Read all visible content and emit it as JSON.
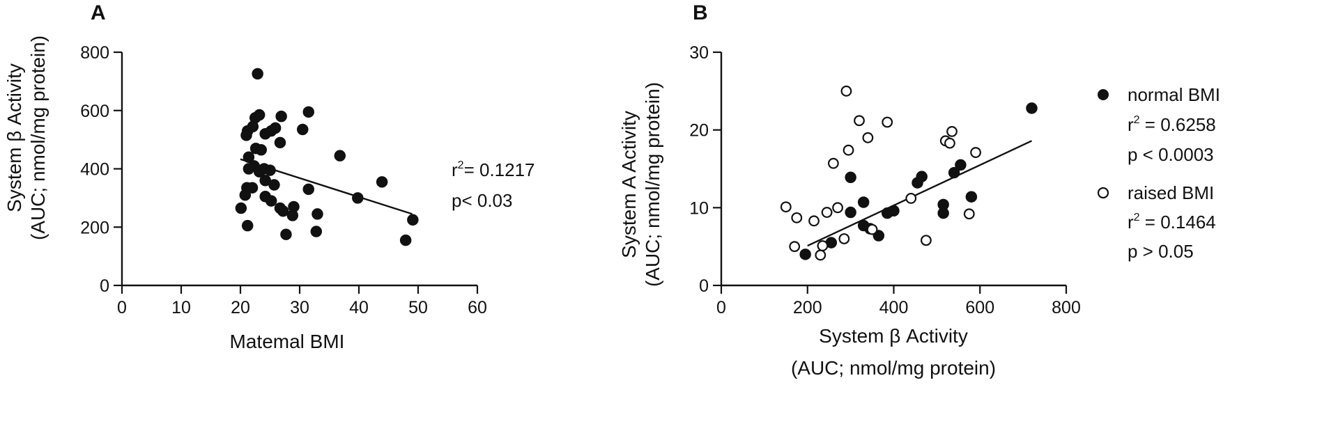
{
  "chart_data": [
    {
      "panel": "A",
      "type": "scatter",
      "xlabel": "Matemal BMI",
      "ylabel_lines": [
        "System β Activity",
        "(AUC; nmol/mg protein)"
      ],
      "xlim": [
        0,
        60
      ],
      "ylim": [
        0,
        800
      ],
      "xticks": [
        0,
        10,
        20,
        30,
        40,
        50,
        60
      ],
      "yticks": [
        0,
        200,
        400,
        600,
        800
      ],
      "grid": false,
      "series": [
        {
          "marker": "filled",
          "points": [
            [
              22.9,
              726
            ],
            [
              21.2,
              530
            ],
            [
              22.1,
              545
            ],
            [
              22.5,
              575
            ],
            [
              23.2,
              585
            ],
            [
              21.0,
              515
            ],
            [
              22.6,
              470
            ],
            [
              23.5,
              465
            ],
            [
              21.4,
              440
            ],
            [
              21.4,
              400
            ],
            [
              22.3,
              410
            ],
            [
              23.2,
              390
            ],
            [
              24.0,
              400
            ],
            [
              21.1,
              335
            ],
            [
              22.0,
              335
            ],
            [
              20.8,
              310
            ],
            [
              20.1,
              265
            ],
            [
              21.2,
              205
            ],
            [
              24.2,
              520
            ],
            [
              25.2,
              530
            ],
            [
              25.9,
              540
            ],
            [
              26.9,
              580
            ],
            [
              26.7,
              490
            ],
            [
              25.0,
              395
            ],
            [
              24.2,
              360
            ],
            [
              25.7,
              345
            ],
            [
              24.2,
              305
            ],
            [
              25.2,
              290
            ],
            [
              26.7,
              265
            ],
            [
              27.2,
              255
            ],
            [
              29.0,
              270
            ],
            [
              28.8,
              240
            ],
            [
              27.7,
              175
            ],
            [
              30.5,
              535
            ],
            [
              31.5,
              595
            ],
            [
              31.5,
              330
            ],
            [
              33.0,
              245
            ],
            [
              32.8,
              185
            ],
            [
              36.8,
              445
            ],
            [
              39.8,
              300
            ],
            [
              43.9,
              355
            ],
            [
              47.9,
              155
            ],
            [
              49.1,
              225
            ]
          ]
        }
      ],
      "fit_line": {
        "x": [
          20,
          49
        ],
        "y": [
          433,
          245
        ]
      },
      "annotation": {
        "r2_prefix": "r",
        "r2_sup": "2",
        "r2_value": "= 0.1217",
        "p": "p< 0.03"
      }
    },
    {
      "panel": "B",
      "type": "scatter",
      "xlabel_lines": [
        "System β Activity",
        "(AUC; nmol/mg protein)"
      ],
      "ylabel_lines": [
        "System A Activity",
        "(AUC; nmol/mg protein)"
      ],
      "xlim": [
        0,
        800
      ],
      "ylim": [
        0,
        30
      ],
      "xticks": [
        0,
        200,
        400,
        600,
        800
      ],
      "yticks": [
        0,
        10,
        20,
        30
      ],
      "grid": false,
      "legend_position": "right",
      "series": [
        {
          "name": "normal BMI",
          "marker": "filled",
          "points": [
            [
              195,
              4.0
            ],
            [
              255,
              5.5
            ],
            [
              330,
              7.7
            ],
            [
              345,
              7.3
            ],
            [
              365,
              6.4
            ],
            [
              300,
              9.4
            ],
            [
              330,
              10.7
            ],
            [
              300,
              13.9
            ],
            [
              385,
              9.3
            ],
            [
              400,
              9.6
            ],
            [
              455,
              13.2
            ],
            [
              465,
              14.0
            ],
            [
              515,
              10.4
            ],
            [
              515,
              9.3
            ],
            [
              540,
              14.5
            ],
            [
              555,
              15.5
            ],
            [
              580,
              11.4
            ],
            [
              720,
              22.8
            ]
          ]
        },
        {
          "name": "raised BMI",
          "marker": "open",
          "points": [
            [
              150,
              10.1
            ],
            [
              175,
              8.7
            ],
            [
              170,
              5.0
            ],
            [
              215,
              8.3
            ],
            [
              230,
              3.9
            ],
            [
              235,
              5.1
            ],
            [
              245,
              9.4
            ],
            [
              260,
              15.7
            ],
            [
              270,
              10.0
            ],
            [
              285,
              6.0
            ],
            [
              290,
              25.0
            ],
            [
              295,
              17.4
            ],
            [
              320,
              21.2
            ],
            [
              340,
              19.0
            ],
            [
              350,
              7.2
            ],
            [
              385,
              21.0
            ],
            [
              440,
              11.2
            ],
            [
              475,
              5.8
            ],
            [
              520,
              18.6
            ],
            [
              530,
              18.3
            ],
            [
              535,
              19.8
            ],
            [
              575,
              9.2
            ],
            [
              590,
              17.1
            ]
          ]
        }
      ],
      "fit_line": {
        "x": [
          200,
          720
        ],
        "y": [
          5.1,
          18.6
        ]
      },
      "legend": [
        {
          "marker": "filled",
          "label": "normal BMI",
          "r2_prefix": "r",
          "r2_sup": "2",
          "r2_value": " = 0.6258",
          "p": "p < 0.0003"
        },
        {
          "marker": "open",
          "label": "raised BMI",
          "r2_prefix": "r",
          "r2_sup": "2",
          "r2_value": " = 0.1464",
          "p": "p > 0.05"
        }
      ]
    }
  ]
}
